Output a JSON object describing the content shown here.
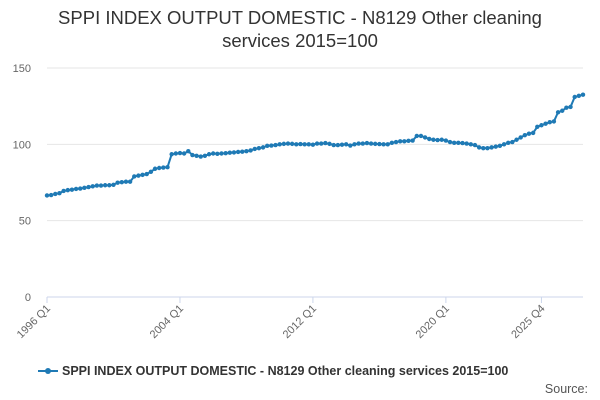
{
  "title_line1": "SPPI INDEX OUTPUT DOMESTIC - N8129 Other cleaning",
  "title_line2": "services 2015=100",
  "source_label": "Source:",
  "colors": {
    "series": "#1f7ab5",
    "grid": "#e6e6e6",
    "axis": "#ccd6eb",
    "text": "#666666"
  },
  "chart_data": {
    "type": "line",
    "ylim": [
      0,
      150
    ],
    "y_ticks": [
      0,
      50,
      100,
      150
    ],
    "x_tick_labels": [
      "1996 Q1",
      "2004 Q1",
      "2012 Q1",
      "2020 Q1",
      "2025 Q4"
    ],
    "grid": true,
    "legend": "bottom",
    "x_start": "1996 Q1",
    "x_end": "2025 Q4",
    "series": [
      {
        "name": "SPPI INDEX OUTPUT DOMESTIC - N8129 Other cleaning services 2015=100",
        "values": [
          66.5,
          66.8,
          67.5,
          68.0,
          69.5,
          70.0,
          70.3,
          70.8,
          71.0,
          71.5,
          72.0,
          72.5,
          73.0,
          73.0,
          73.2,
          73.2,
          73.5,
          74.9,
          75.2,
          75.5,
          75.5,
          79.0,
          79.5,
          80.0,
          80.5,
          82.0,
          84.0,
          84.5,
          84.8,
          85.0,
          93.5,
          94.0,
          94.3,
          94.0,
          95.5,
          93.0,
          92.5,
          92.0,
          92.5,
          93.5,
          94.0,
          93.8,
          94.0,
          94.2,
          94.5,
          94.7,
          95.0,
          95.2,
          95.5,
          96.0,
          97.0,
          97.5,
          98.0,
          99.0,
          99.2,
          99.5,
          100.0,
          100.3,
          100.5,
          100.3,
          100.0,
          100.2,
          100.0,
          100.0,
          99.8,
          100.5,
          100.5,
          100.8,
          100.3,
          99.5,
          99.5,
          99.8,
          100.0,
          99.2,
          100.0,
          100.5,
          100.5,
          100.8,
          100.5,
          100.3,
          100.2,
          100.0,
          100.0,
          101.0,
          101.5,
          102.0,
          102.0,
          102.3,
          102.5,
          105.5,
          105.5,
          104.5,
          103.5,
          103.0,
          102.8,
          103.0,
          102.5,
          101.5,
          101.0,
          101.0,
          100.8,
          100.5,
          100.0,
          99.5,
          98.0,
          97.5,
          97.5,
          98.0,
          98.5,
          99.0,
          100.0,
          101.0,
          101.5,
          103.0,
          104.5,
          106.0,
          107.0,
          107.5,
          111.5,
          112.5,
          113.5,
          114.5,
          115.0,
          121.0,
          122.0,
          124.0,
          124.5,
          131.0,
          131.8,
          132.5
        ]
      }
    ]
  }
}
